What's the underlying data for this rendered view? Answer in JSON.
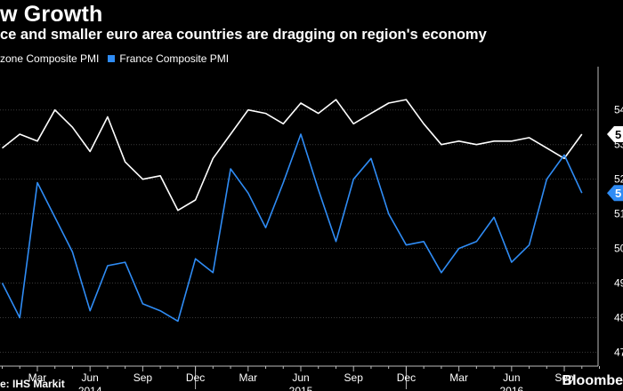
{
  "header": {
    "title": "w Growth",
    "subtitle": "ce and smaller euro area countries are dragging on region's economy"
  },
  "footer": {
    "source": "e: IHS Markit",
    "brand": "Bloombe"
  },
  "colors": {
    "euro": "#ffffff",
    "france": "#2f8cf5",
    "background": "#000000",
    "grid": "#3a3a3a"
  },
  "chart_data": {
    "type": "line",
    "title": "",
    "xlabel": "",
    "ylabel": "",
    "x_tick_labels": [
      "Mar",
      "Jun",
      "Sep",
      "Dec",
      "Mar",
      "Jun",
      "Sep",
      "Dec",
      "Mar",
      "Jun",
      "Sep"
    ],
    "x_tick_months": [
      2,
      5,
      8,
      11,
      14,
      17,
      20,
      23,
      26,
      29,
      32
    ],
    "year_labels": [
      {
        "label": "2014",
        "month": 5
      },
      {
        "label": "2015",
        "month": 17
      },
      {
        "label": "2016",
        "month": 29
      }
    ],
    "y_tick_labels": [
      "54",
      "53",
      "52",
      "51",
      "50",
      "49",
      "48",
      "47"
    ],
    "ylim": [
      46.6,
      55.2
    ],
    "grid": true,
    "legend_position": "top-left",
    "series": [
      {
        "name": "zone Composite PMI",
        "end_label": "5",
        "values": [
          52.9,
          53.3,
          53.1,
          54.0,
          53.5,
          52.8,
          53.8,
          52.5,
          52.0,
          52.1,
          51.1,
          51.4,
          52.6,
          53.3,
          54.0,
          53.9,
          53.6,
          54.2,
          53.9,
          54.3,
          53.6,
          53.9,
          54.2,
          54.3,
          53.6,
          53.0,
          53.1,
          53.0,
          53.1,
          53.1,
          53.2,
          52.9,
          52.6,
          53.3
        ]
      },
      {
        "name": "France Composite PMI",
        "end_label": "5",
        "values": [
          49.0,
          48.0,
          51.9,
          50.9,
          49.9,
          48.2,
          49.5,
          49.6,
          48.4,
          48.2,
          47.9,
          49.7,
          49.3,
          52.3,
          51.6,
          50.6,
          51.9,
          53.3,
          51.7,
          50.2,
          52.0,
          52.6,
          51.0,
          50.1,
          50.2,
          49.3,
          50.0,
          50.2,
          50.9,
          49.6,
          50.1,
          52.0,
          52.7,
          51.6
        ]
      }
    ]
  }
}
